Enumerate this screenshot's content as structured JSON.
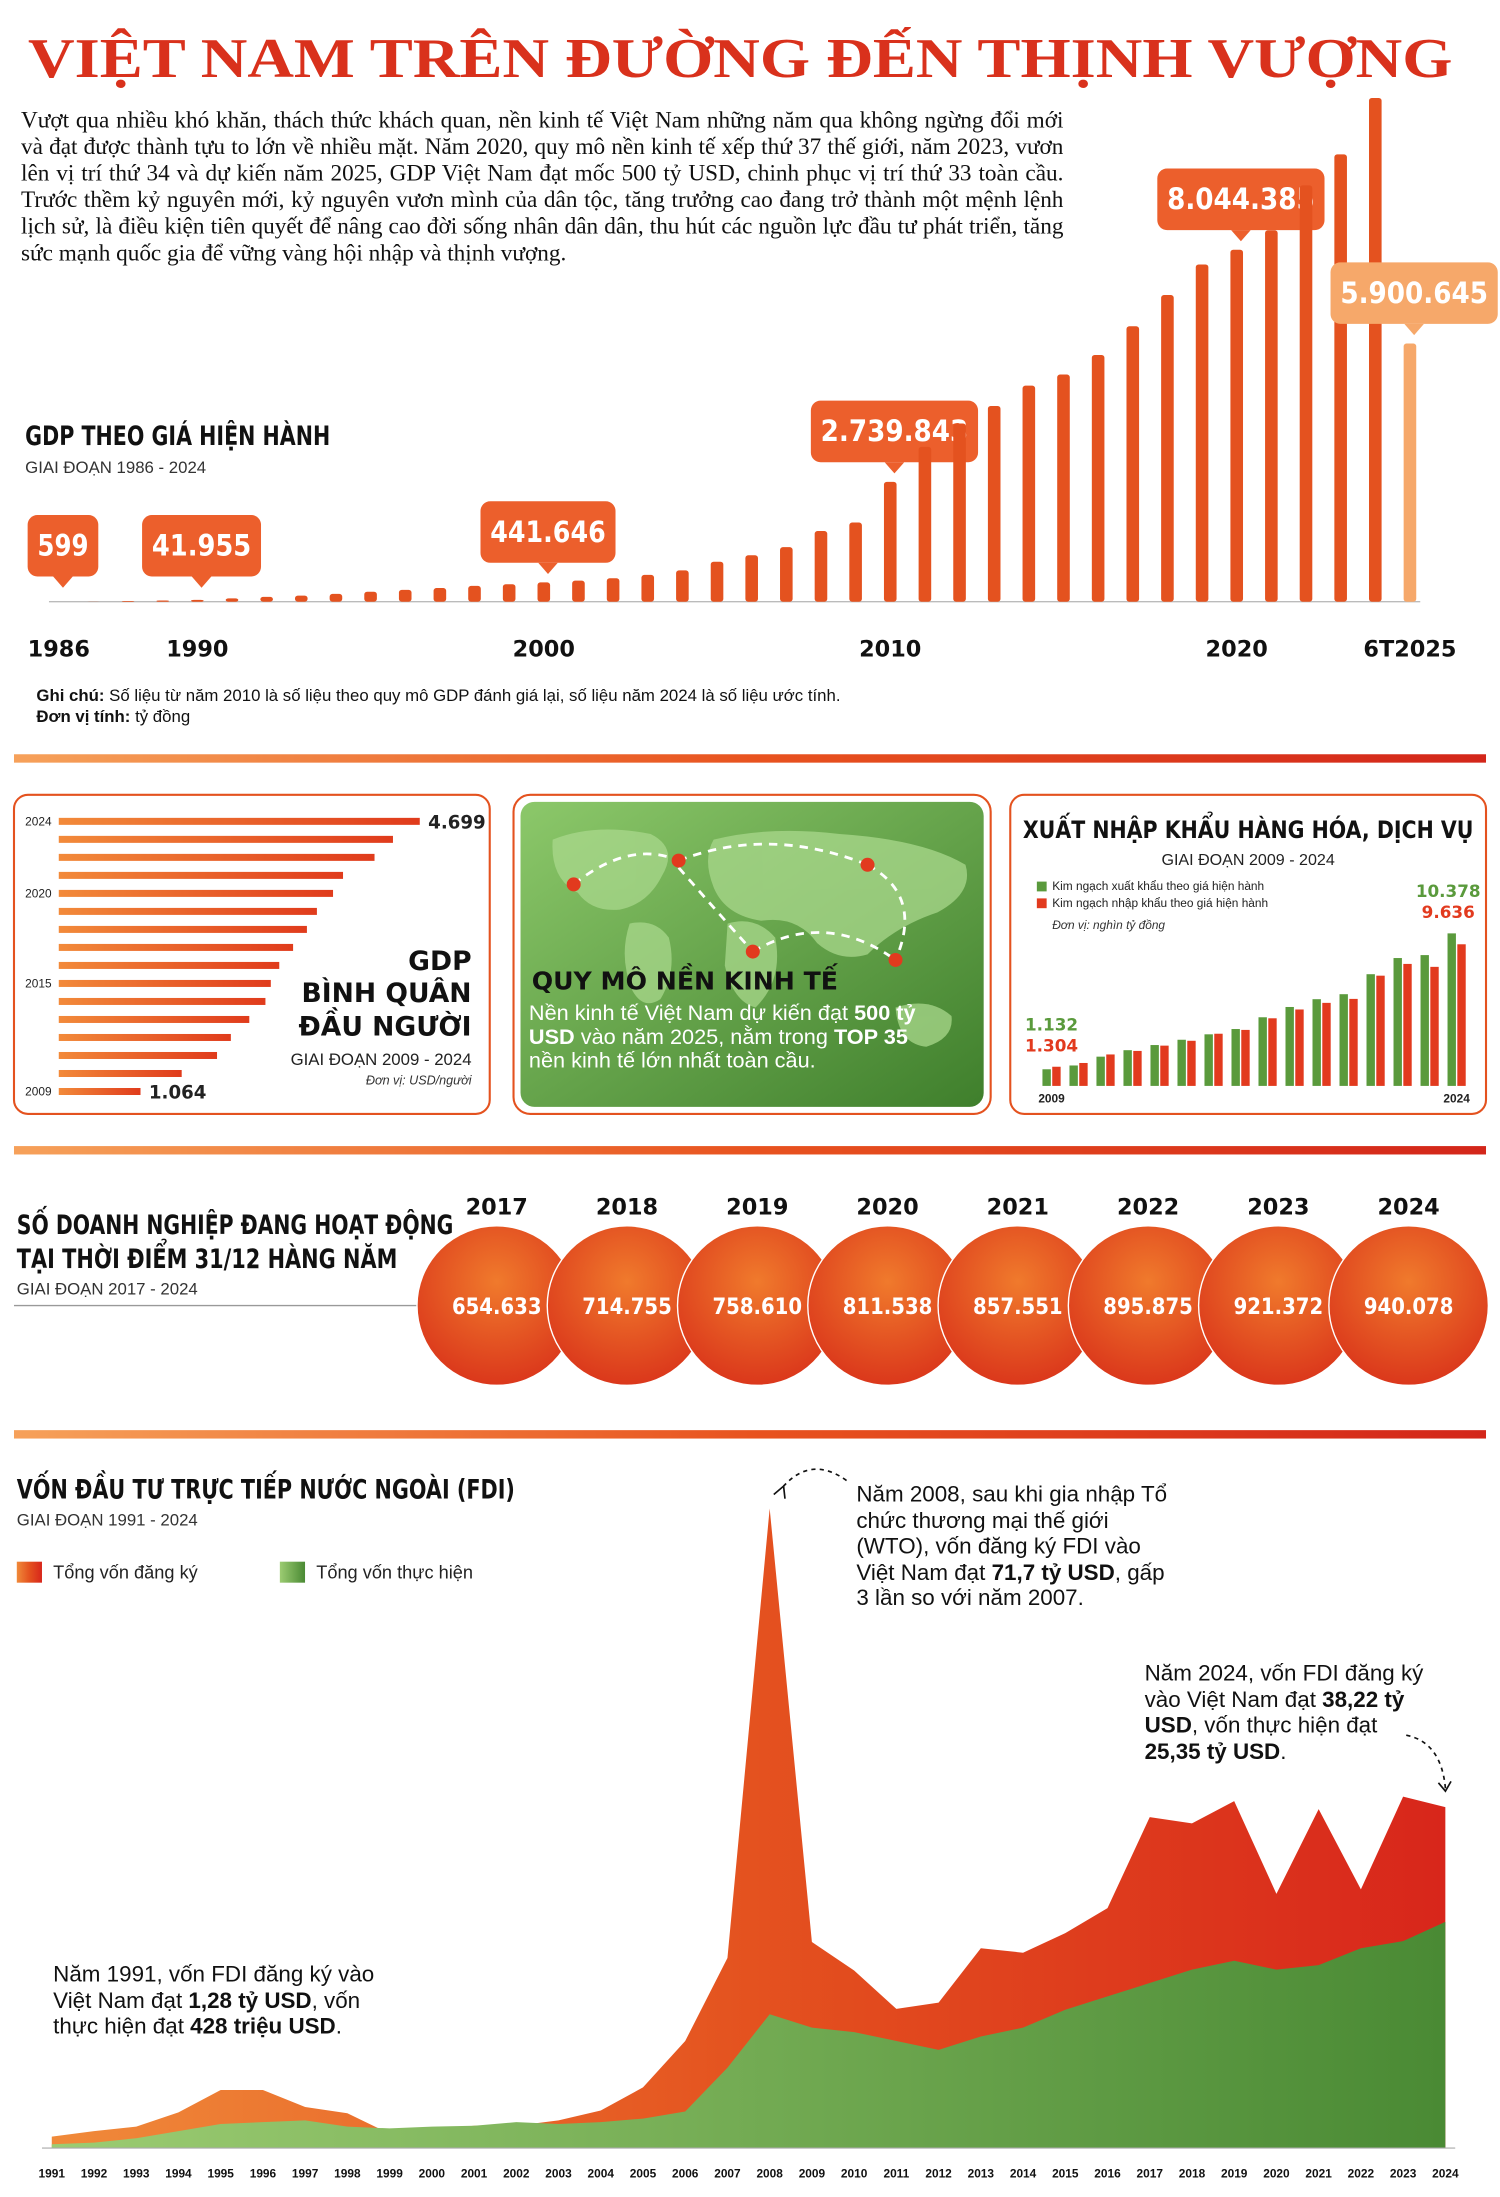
{
  "header": {
    "title": "VIỆT NAM TRÊN ĐƯỜNG ĐẾN THỊNH VƯỢNG",
    "intro": "Vượt qua nhiều khó khăn, thách thức khách quan, nền kinh tế Việt Nam những năm qua không ngừng đổi mới và đạt được thành tựu to lớn về nhiều mặt. Năm 2020, quy mô nền kinh tế xếp thứ 37 thế giới, năm 2023, vươn lên vị trí thứ 34 và dự kiến năm 2025, GDP Việt Nam đạt mốc 500 tỷ USD, chinh phục vị trí thứ 33 toàn cầu. Trước thềm kỷ nguyên mới, kỷ nguyên vươn mình của dân tộc, tăng trưởng cao đang trở thành một mệnh lệnh lịch sử, là điều kiện tiên quyết để nâng cao đời sống nhân dân dân, thu hút các nguồn lực đầu tư phát triển, tăng sức mạnh quốc gia để vững vàng hội nhập và thịnh vượng."
  },
  "economy_scale": {
    "title": "QUY MÔ NỀN KINH TẾ",
    "body": [
      "Nền kinh tế Việt Nam dự kiến đạt ",
      "500 tỷ USD",
      " vào năm 2025, nằm trong ",
      "TOP 35",
      " nền kinh tế lớn nhất toàn cầu."
    ]
  },
  "chart_data": [
    {
      "type": "bar",
      "title": "GDP THEO GIÁ HIỆN HÀNH",
      "subtitle": "GIAI ĐOẠN 1986 - 2024",
      "categories": [
        "1986",
        null,
        null,
        null,
        "1990",
        null,
        null,
        null,
        null,
        null,
        null,
        null,
        null,
        null,
        "2000",
        null,
        null,
        null,
        null,
        null,
        null,
        null,
        null,
        null,
        "2010",
        null,
        null,
        null,
        null,
        null,
        null,
        null,
        null,
        null,
        "2020",
        null,
        null,
        null,
        null,
        "6T2025"
      ],
      "values": [
        599,
        2870,
        15420,
        28093,
        41955,
        76707,
        110532,
        140258,
        178534,
        228892,
        272036,
        313623,
        361017,
        399942,
        441646,
        481295,
        535762,
        613443,
        715307,
        914001,
        1061565,
        1246769,
        1616047,
        1809149,
        2739843,
        3539881,
        4073762,
        4473656,
        4937032,
        5191324,
        5639401,
        6293905,
        7009042,
        7707200,
        8044385,
        8487475,
        9513327,
        10221815,
        11511900,
        5900645
      ],
      "value_labels": [
        "599",
        null,
        null,
        null,
        "41.955",
        null,
        null,
        null,
        null,
        null,
        null,
        null,
        null,
        null,
        "441.646",
        null,
        null,
        null,
        null,
        null,
        null,
        null,
        null,
        null,
        "2.739.843",
        null,
        null,
        null,
        null,
        null,
        null,
        null,
        null,
        null,
        "8.044.385",
        null,
        null,
        null,
        null,
        "5.900.645"
      ],
      "color": "#e4521f",
      "last_color": "#f6a86a",
      "notes": [
        [
          "Ghi chú:",
          " Số liệu từ năm 2010 là số liệu theo quy mô GDP đánh giá lại, số liệu năm 2024 là số liệu ước tính."
        ],
        [
          "Đơn vị tính:",
          " tỷ đồng"
        ]
      ]
    },
    {
      "type": "hbar",
      "title": [
        "GDP",
        "BÌNH QUÂN",
        "ĐẦU NGƯỜI"
      ],
      "subtitle": "GIAI ĐOẠN 2009 - 2024",
      "unit": "Đơn vị: USD/người",
      "categories": [
        "2009",
        null,
        null,
        null,
        null,
        null,
        "2015",
        null,
        null,
        null,
        null,
        "2020",
        null,
        null,
        null,
        "2024"
      ],
      "values": [
        1064,
        1600,
        2060,
        2240,
        2480,
        2690,
        2760,
        2870,
        3050,
        3230,
        3360,
        3570,
        3700,
        4110,
        4350,
        4699
      ],
      "value_labels": [
        "1.064",
        null,
        null,
        null,
        null,
        null,
        null,
        null,
        null,
        null,
        null,
        null,
        null,
        null,
        null,
        "4.699"
      ],
      "color": "#e4521f"
    },
    {
      "type": "grouped-bar",
      "title": "XUẤT NHẬP KHẨU HÀNG HÓA, DỊCH VỤ",
      "subtitle": "GIAI ĐOẠN 2009 - 2024",
      "unit": "Đơn vị: nghìn tỷ đồng",
      "categories": [
        "2009",
        null,
        null,
        null,
        null,
        null,
        null,
        null,
        null,
        null,
        null,
        null,
        null,
        null,
        null,
        "2024"
      ],
      "series": [
        {
          "name": "Kim ngạch xuất khẩu theo giá hiện hành",
          "color": "#5a9a3c",
          "values": [
            1132,
            1390,
            1990,
            2430,
            2780,
            3140,
            3510,
            3870,
            4670,
            5370,
            5900,
            6240,
            7600,
            8700,
            8900,
            10378
          ],
          "value_labels": [
            "1.132",
            null,
            null,
            null,
            null,
            null,
            null,
            null,
            null,
            null,
            null,
            null,
            null,
            null,
            null,
            "10.378"
          ]
        },
        {
          "name": "Kim ngạch nhập khẩu theo giá hiện hành",
          "color": "#e23a1e",
          "values": [
            1304,
            1560,
            2140,
            2380,
            2740,
            3070,
            3550,
            3810,
            4600,
            5200,
            5650,
            5920,
            7500,
            8300,
            8100,
            9636
          ],
          "value_labels": [
            "1.304",
            null,
            null,
            null,
            null,
            null,
            null,
            null,
            null,
            null,
            null,
            null,
            null,
            null,
            null,
            "9.636"
          ]
        }
      ]
    },
    {
      "type": "bubble-row",
      "title": [
        "SỐ DOANH NGHIỆP ĐANG HOẠT ĐỘNG",
        "TẠI THỜI ĐIỂM 31/12 HÀNG NĂM"
      ],
      "subtitle": "GIAI ĐOẠN 2017 - 2024",
      "categories": [
        "2017",
        "2018",
        "2019",
        "2020",
        "2021",
        "2022",
        "2023",
        "2024"
      ],
      "values": [
        654633,
        714755,
        758610,
        811538,
        857551,
        895875,
        921372,
        940078
      ],
      "value_labels": [
        "654.633",
        "714.755",
        "758.610",
        "811.538",
        "857.551",
        "895.875",
        "921.372",
        "940.078"
      ],
      "color": "#e4521f"
    },
    {
      "type": "area",
      "title": "VỐN ĐẦU TƯ TRỰC TIẾP NƯỚC NGOÀI (FDI)",
      "subtitle": "GIAI ĐOẠN 1991 - 2024",
      "categories": [
        "1991",
        "1992",
        "1993",
        "1994",
        "1995",
        "1996",
        "1997",
        "1998",
        "1999",
        "2000",
        "2001",
        "2002",
        "2003",
        "2004",
        "2005",
        "2006",
        "2007",
        "2008",
        "2009",
        "2010",
        "2011",
        "2012",
        "2013",
        "2014",
        "2015",
        "2016",
        "2017",
        "2018",
        "2019",
        "2020",
        "2021",
        "2022",
        "2023",
        "2024"
      ],
      "series": [
        {
          "name": "Tổng vốn đăng ký",
          "color": "#e0401d",
          "values": [
            1.28,
            1.9,
            2.4,
            4.0,
            6.5,
            6.5,
            4.6,
            3.9,
            1.6,
            2.0,
            2.5,
            2.5,
            3.1,
            4.2,
            6.8,
            12.0,
            21.3,
            71.7,
            23.1,
            19.9,
            15.6,
            16.3,
            22.4,
            21.9,
            24.1,
            26.9,
            37.1,
            36.4,
            38.9,
            28.5,
            38.0,
            29.0,
            39.4,
            38.22
          ]
        },
        {
          "name": "Tổng vốn thực hiện",
          "color": "#5e9e42",
          "values": [
            0.428,
            0.6,
            1.1,
            1.9,
            2.7,
            2.9,
            3.1,
            2.4,
            2.2,
            2.4,
            2.5,
            2.9,
            2.7,
            2.9,
            3.3,
            4.1,
            9.0,
            15.0,
            13.5,
            13.0,
            12.0,
            11.0,
            12.5,
            13.5,
            15.5,
            17.0,
            18.5,
            20.0,
            21.0,
            20.0,
            20.5,
            22.4,
            23.2,
            25.35
          ]
        }
      ],
      "annotations": [
        [
          "Năm 2008, sau khi gia nhập Tổ chức thương mại thế giới (WTO), vốn đăng ký FDI vào Việt Nam đạt ",
          "71,7 tỷ USD",
          ", gấp 3 lần so với năm 2007."
        ],
        [
          "Năm 2024, vốn FDI đăng ký vào Việt Nam đạt ",
          "38,22 tỷ USD",
          ", vốn thực hiện đạt ",
          "25,35 tỷ USD",
          "."
        ],
        [
          "Năm 1991, vốn FDI đăng ký vào Việt Nam đạt ",
          "1,28 tỷ USD",
          ", vốn thực hiện đạt ",
          "428 triệu USD",
          "."
        ]
      ]
    }
  ]
}
